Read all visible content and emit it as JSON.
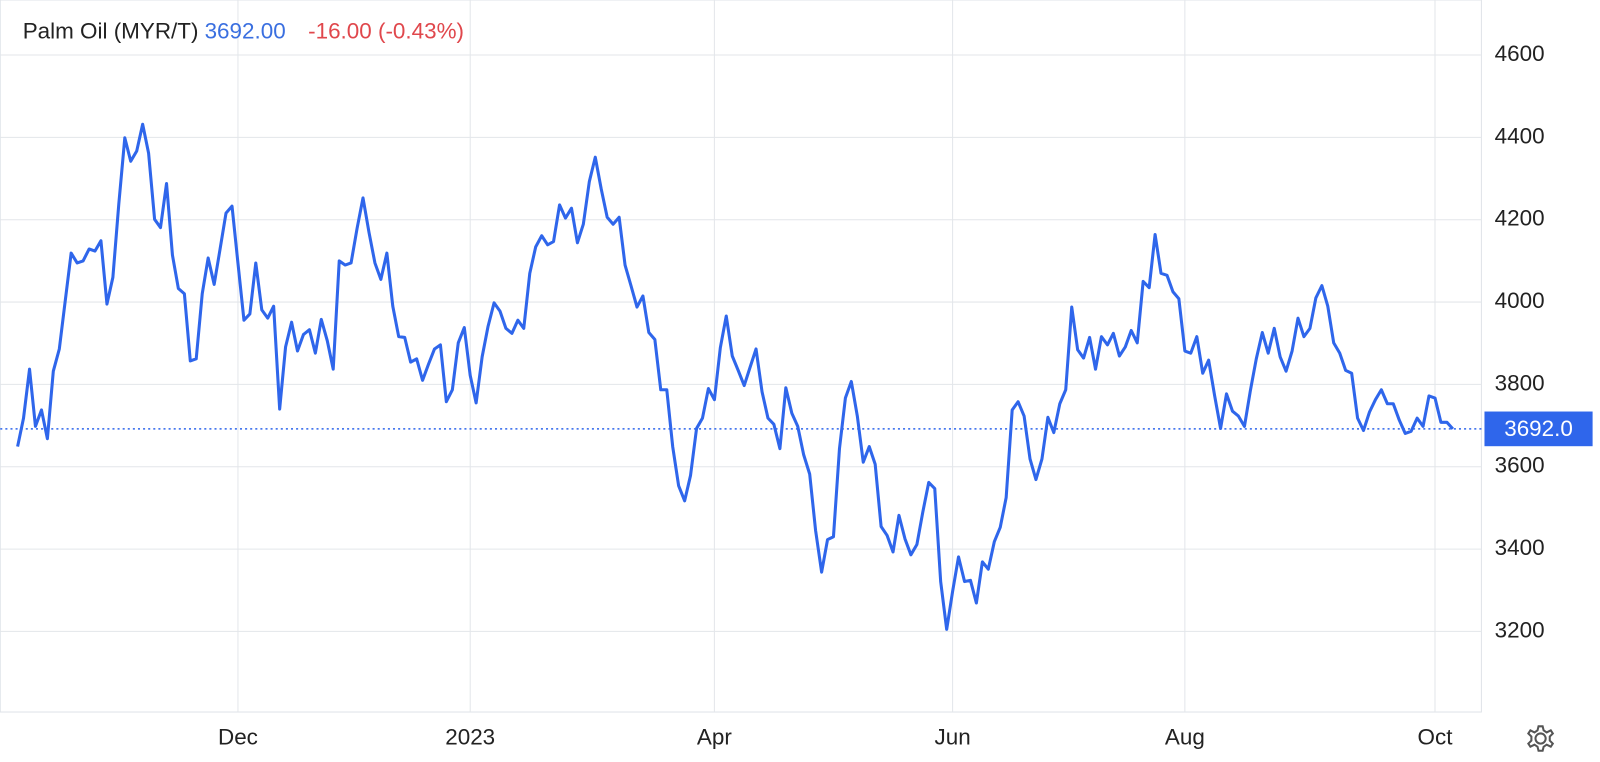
{
  "chart_data": {
    "type": "line",
    "title": "Palm Oil (MYR/T)",
    "price": "3692.00",
    "change": "-16.00 (-0.43%)",
    "last_value": {
      "value": 3692,
      "label": "3692.0"
    },
    "categories": [
      null,
      null,
      null,
      null,
      null,
      null,
      null,
      null,
      null,
      null,
      null,
      null,
      null,
      null,
      null,
      null,
      null,
      null,
      null,
      null,
      null,
      null,
      null,
      null,
      null,
      null,
      null,
      null,
      null,
      null,
      null,
      null,
      null,
      null,
      null,
      null,
      null,
      "Dec",
      null,
      null,
      null,
      null,
      null,
      null,
      null,
      null,
      null,
      null,
      null,
      null,
      null,
      null,
      null,
      null,
      null,
      null,
      null,
      null,
      null,
      null,
      null,
      null,
      null,
      null,
      null,
      null,
      null,
      null,
      null,
      null,
      null,
      null,
      null,
      null,
      null,
      null,
      "2023",
      null,
      null,
      null,
      null,
      null,
      null,
      null,
      null,
      null,
      null,
      null,
      null,
      null,
      null,
      null,
      null,
      null,
      null,
      null,
      null,
      null,
      null,
      null,
      null,
      null,
      null,
      null,
      null,
      null,
      null,
      null,
      null,
      null,
      null,
      null,
      null,
      null,
      null,
      null,
      null,
      "Apr",
      null,
      null,
      null,
      null,
      null,
      null,
      null,
      null,
      null,
      null,
      null,
      null,
      null,
      null,
      null,
      null,
      null,
      null,
      null,
      null,
      null,
      null,
      null,
      null,
      null,
      null,
      null,
      null,
      null,
      null,
      null,
      null,
      null,
      null,
      null,
      null,
      null,
      null,
      null,
      "Jun",
      null,
      null,
      null,
      null,
      null,
      null,
      null,
      null,
      null,
      null,
      null,
      null,
      null,
      null,
      null,
      null,
      null,
      null,
      null,
      null,
      null,
      null,
      null,
      null,
      null,
      null,
      null,
      null,
      null,
      null,
      null,
      null,
      null,
      null,
      null,
      null,
      null,
      null,
      "Aug",
      null,
      null,
      null,
      null,
      null,
      null,
      null,
      null,
      null,
      null,
      null,
      null,
      null,
      null,
      null,
      null,
      null,
      null,
      null,
      null,
      null,
      null,
      null,
      null,
      null,
      null,
      null,
      null,
      null,
      null,
      null,
      null,
      null,
      null,
      null,
      null,
      null,
      null,
      null,
      null,
      null,
      "Oct",
      null,
      null,
      null
    ],
    "series": [
      {
        "name": "Palm Oil (MYR/T)",
        "color": "#2f66eb",
        "values": [
          3649,
          3718,
          3837,
          3698,
          3738,
          3668,
          3832,
          3886,
          4003,
          4119,
          4095,
          4100,
          4129,
          4124,
          4149,
          3995,
          4060,
          4238,
          4399,
          4342,
          4367,
          4432,
          4362,
          4201,
          4181,
          4288,
          4114,
          4033,
          4020,
          3857,
          3862,
          4020,
          4107,
          4043,
          4129,
          4216,
          4233,
          4095,
          3956,
          3971,
          4095,
          3981,
          3961,
          3990,
          3740,
          3891,
          3951,
          3881,
          3921,
          3933,
          3876,
          3958,
          3906,
          3837,
          4100,
          4090,
          4095,
          4179,
          4253,
          4169,
          4095,
          4055,
          4119,
          3990,
          3916,
          3914,
          3854,
          3862,
          3810,
          3849,
          3886,
          3896,
          3758,
          3787,
          3901,
          3938,
          3822,
          3755,
          3867,
          3941,
          3998,
          3978,
          3936,
          3924,
          3956,
          3936,
          4070,
          4134,
          4161,
          4139,
          4147,
          4236,
          4204,
          4228,
          4144,
          4189,
          4293,
          4352,
          4275,
          4206,
          4189,
          4206,
          4090,
          4040,
          3988,
          4015,
          3926,
          3909,
          3787,
          3787,
          3649,
          3554,
          3517,
          3579,
          3693,
          3718,
          3790,
          3763,
          3889,
          3966,
          3869,
          3834,
          3797,
          3842,
          3886,
          3782,
          3718,
          3703,
          3644,
          3792,
          3730,
          3698,
          3629,
          3582,
          3445,
          3344,
          3423,
          3430,
          3644,
          3767,
          3807,
          3723,
          3611,
          3649,
          3606,
          3455,
          3433,
          3393,
          3482,
          3425,
          3386,
          3411,
          3490,
          3562,
          3547,
          3321,
          3205,
          3297,
          3381,
          3321,
          3324,
          3269,
          3369,
          3351,
          3418,
          3453,
          3525,
          3738,
          3758,
          3723,
          3619,
          3569,
          3619,
          3720,
          3683,
          3753,
          3787,
          3988,
          3884,
          3864,
          3914,
          3837,
          3916,
          3896,
          3924,
          3869,
          3891,
          3931,
          3901,
          4050,
          4035,
          4164,
          4070,
          4065,
          4025,
          4008,
          3881,
          3876,
          3916,
          3827,
          3859,
          3772,
          3693,
          3777,
          3735,
          3723,
          3698,
          3785,
          3862,
          3926,
          3876,
          3936,
          3867,
          3832,
          3881,
          3961,
          3916,
          3936,
          4010,
          4040,
          3990,
          3901,
          3876,
          3834,
          3827,
          3718,
          3688,
          3733,
          3763,
          3787,
          3753,
          3753,
          3713,
          3681,
          3686,
          3718,
          3698,
          3772,
          3767,
          3708,
          3708,
          3692
        ]
      }
    ],
    "ylim": [
      3000,
      4730
    ],
    "yticks": [
      3200,
      3400,
      3600,
      3800,
      4000,
      4200,
      4400,
      4600
    ],
    "grid": true,
    "price_color": "#3a6fe0",
    "change_color": "#e0474c"
  }
}
